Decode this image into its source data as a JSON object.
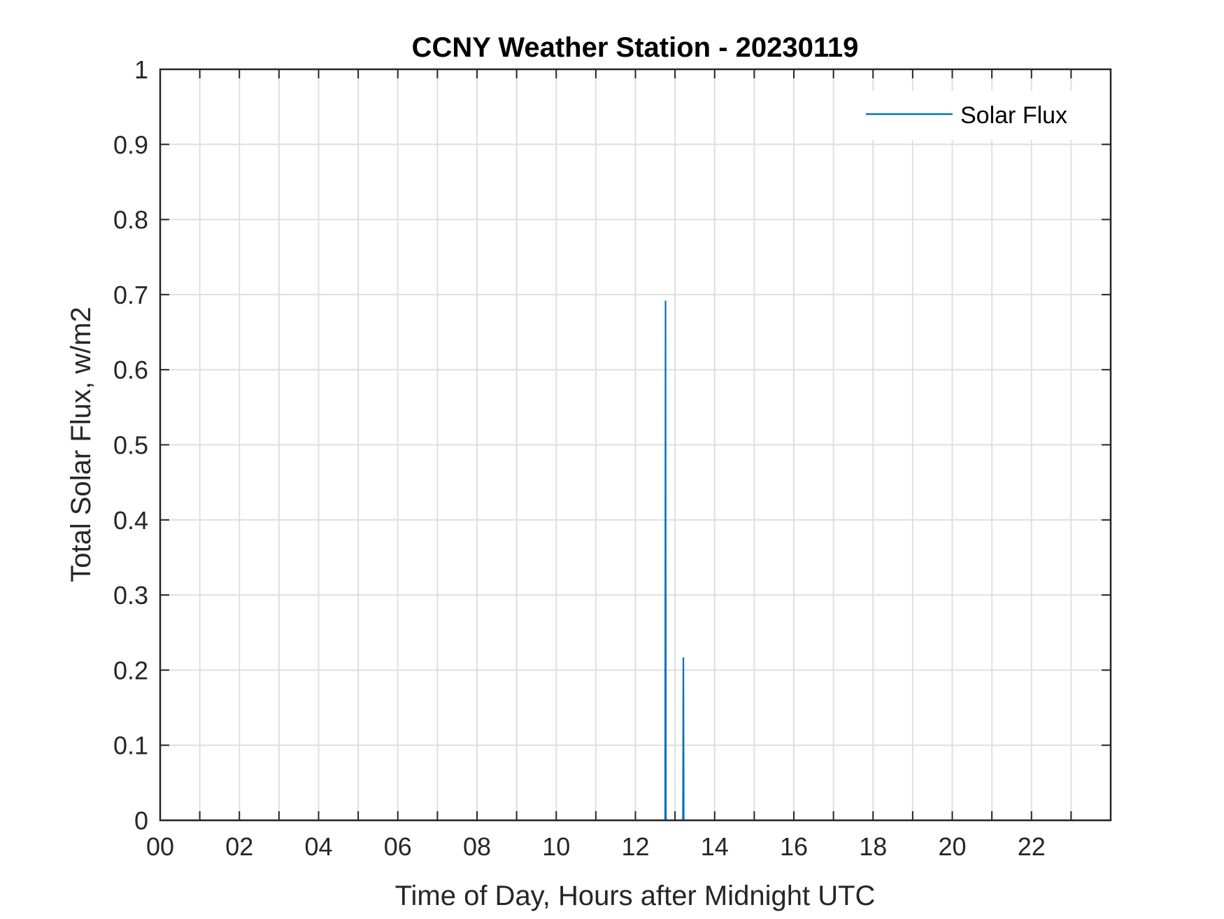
{
  "chart_data": {
    "type": "line",
    "title": "CCNY Weather Station - 20230119",
    "xlabel": "Time of Day, Hours after Midnight UTC",
    "ylabel": "Total Solar Flux, w/m2",
    "xlim": [
      0,
      24
    ],
    "ylim": [
      0,
      1
    ],
    "x_tick_values": [
      0,
      2,
      4,
      6,
      8,
      10,
      12,
      14,
      16,
      18,
      20,
      22
    ],
    "x_tick_labels": [
      "00",
      "02",
      "04",
      "06",
      "08",
      "10",
      "12",
      "14",
      "16",
      "18",
      "20",
      "22"
    ],
    "y_tick_values": [
      0,
      0.1,
      0.2,
      0.3,
      0.4,
      0.5,
      0.6,
      0.7,
      0.8,
      0.9,
      1
    ],
    "y_tick_labels": [
      "0",
      "0.1",
      "0.2",
      "0.3",
      "0.4",
      "0.5",
      "0.6",
      "0.7",
      "0.8",
      "0.9",
      "1"
    ],
    "grid": true,
    "grid_step_x": 1,
    "legend_position": "top-right",
    "colors": {
      "series": "#0072bd",
      "axes": "#262626",
      "grid": "#dfdfdf"
    },
    "series": [
      {
        "name": "Solar Flux",
        "x": [
          0,
          12.75,
          12.76,
          12.77,
          13.2,
          13.21,
          13.22,
          24
        ],
        "y": [
          0,
          0,
          0.692,
          0,
          0,
          0.217,
          0,
          0
        ]
      }
    ]
  }
}
